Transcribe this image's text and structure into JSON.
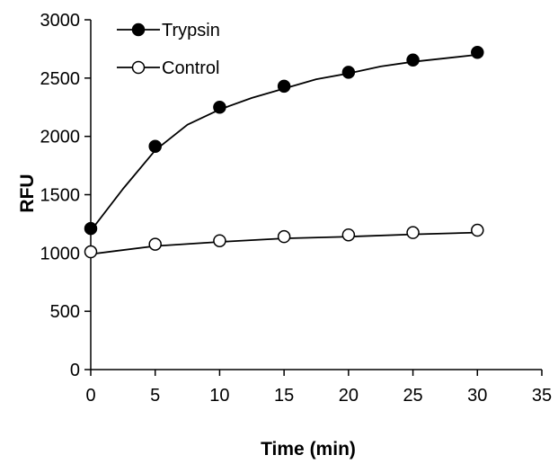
{
  "chart_data": {
    "type": "line",
    "title": "",
    "xlabel": "Time (min)",
    "ylabel": "RFU",
    "xlim": [
      0,
      35
    ],
    "ylim": [
      0,
      3000
    ],
    "x_ticks": [
      0,
      5,
      10,
      15,
      20,
      25,
      30,
      35
    ],
    "y_ticks": [
      0,
      500,
      1000,
      1500,
      2000,
      2500,
      3000
    ],
    "grid": false,
    "legend_position": "top-left",
    "series": [
      {
        "name": "Trypsin",
        "marker": "filled-circle",
        "color": "#000000",
        "x": [
          0,
          5,
          10,
          15,
          20,
          25,
          30
        ],
        "values": [
          1210,
          1915,
          2250,
          2430,
          2550,
          2655,
          2720
        ],
        "fit_x": [
          0,
          2.5,
          5,
          7.5,
          10,
          12.5,
          15,
          17.5,
          20,
          22.5,
          25,
          27.5,
          30
        ],
        "fit_values": [
          1190,
          1550,
          1880,
          2100,
          2230,
          2330,
          2410,
          2490,
          2540,
          2600,
          2640,
          2670,
          2700
        ]
      },
      {
        "name": "Control",
        "marker": "open-circle",
        "color": "#000000",
        "x": [
          0,
          5,
          10,
          15,
          20,
          25,
          30
        ],
        "values": [
          1010,
          1075,
          1105,
          1140,
          1155,
          1175,
          1195
        ],
        "fit_x": [
          0,
          5,
          10,
          15,
          20,
          25,
          30
        ],
        "fit_values": [
          990,
          1060,
          1095,
          1125,
          1140,
          1160,
          1175
        ]
      }
    ]
  }
}
